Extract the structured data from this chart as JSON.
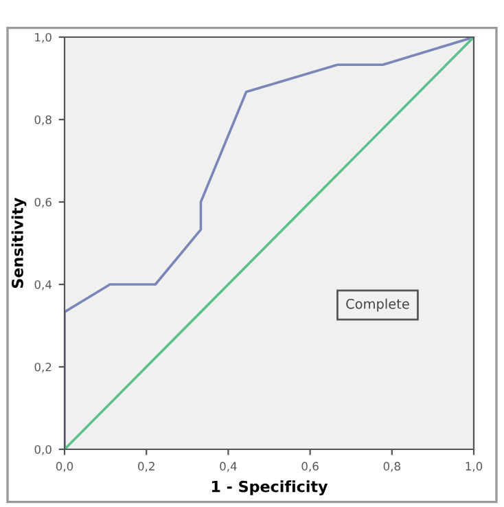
{
  "chart_data": {
    "type": "line",
    "xlabel": "1 - Specificity",
    "ylabel": "Sensitivity",
    "series": [
      {
        "color": "#7b86b8",
        "x": [
          0,
          0,
          0.111,
          0.222,
          0.333,
          0.333,
          0.444,
          0.667,
          0.778,
          1
        ],
        "values": [
          0,
          0.333,
          0.4,
          0.4,
          0.533,
          0.6,
          0.867,
          0.933,
          0.933,
          1
        ]
      },
      {
        "color": "#5cc08a",
        "x": [
          0,
          1
        ],
        "values": [
          0,
          1
        ]
      }
    ],
    "xlim": [
      0,
      1
    ],
    "ylim": [
      0,
      1
    ],
    "xticks": [
      {
        "value": 0,
        "label": "0,0"
      },
      {
        "value": 0.2,
        "label": "0,2"
      },
      {
        "value": 0.4,
        "label": "0,4"
      },
      {
        "value": 0.6,
        "label": "0,6"
      },
      {
        "value": 0.8,
        "label": "0,8"
      },
      {
        "value": 1,
        "label": "1,0"
      }
    ],
    "yticks": [
      {
        "value": 0,
        "label": "0,0"
      },
      {
        "value": 0.2,
        "label": "0,2"
      },
      {
        "value": 0.4,
        "label": "0,4"
      },
      {
        "value": 0.6,
        "label": "0,6"
      },
      {
        "value": 0.8,
        "label": "0,8"
      },
      {
        "value": 1,
        "label": "1,0"
      }
    ],
    "annotations": [
      "Complete"
    ],
    "grid": false
  }
}
